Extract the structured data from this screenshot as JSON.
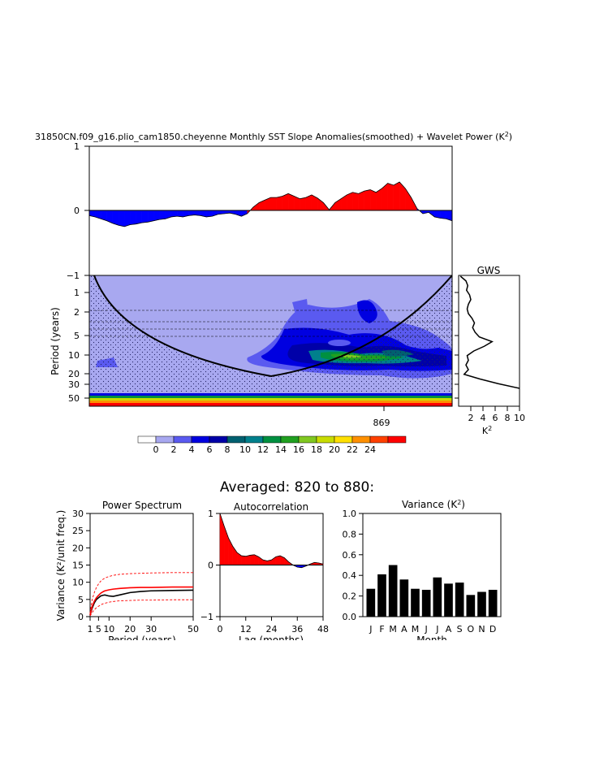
{
  "title": {
    "main": "31850CN.f09_g16.plio_cam1850.cheyenne Monthly SST Slope Anomalies(smoothed) + Wavelet Power (K",
    "sup": "2",
    "tail": ")"
  },
  "timeseries": {
    "yticks": [
      "1",
      "0",
      "−1"
    ],
    "values": [
      -0.08,
      -0.1,
      -0.13,
      -0.16,
      -0.2,
      -0.23,
      -0.25,
      -0.22,
      -0.21,
      -0.19,
      -0.18,
      -0.16,
      -0.14,
      -0.13,
      -0.1,
      -0.09,
      -0.1,
      -0.08,
      -0.07,
      -0.08,
      -0.1,
      -0.09,
      -0.06,
      -0.05,
      -0.04,
      -0.06,
      -0.09,
      -0.05,
      0.05,
      0.12,
      0.16,
      0.2,
      0.2,
      0.22,
      0.26,
      0.22,
      0.18,
      0.2,
      0.24,
      0.19,
      0.12,
      0.01,
      0.12,
      0.18,
      0.24,
      0.28,
      0.26,
      0.3,
      0.32,
      0.28,
      0.34,
      0.42,
      0.39,
      0.44,
      0.34,
      0.2,
      0.03,
      -0.05,
      -0.03,
      -0.1,
      -0.12,
      -0.13,
      -0.16
    ],
    "pos_color": "#ff0000",
    "neg_color": "#0000ff"
  },
  "wavelet": {
    "ylabel": "Period (years)",
    "yticks": [
      "1",
      "2",
      "5",
      "10",
      "20",
      "30",
      "50"
    ],
    "xtick": "869",
    "bg_color": "#a8a8f0"
  },
  "gws": {
    "title": "GWS",
    "xticks": [
      "2",
      "4",
      "6",
      "8",
      "10"
    ],
    "xlabel": "K",
    "xlabel_sup": "2",
    "values": [
      0.3,
      1.2,
      1.5,
      1.3,
      1.8,
      2.0,
      1.6,
      1.4,
      1.6,
      2.2,
      2.6,
      2.3,
      2.7,
      3.4,
      5.5,
      4.2,
      2.5,
      1.4,
      1.6,
      1.2,
      1.6,
      0.9,
      3.5,
      6.5,
      10
    ]
  },
  "colorbar": {
    "labels": [
      "0",
      "2",
      "4",
      "6",
      "8",
      "10",
      "12",
      "14",
      "16",
      "18",
      "20",
      "22",
      "24"
    ],
    "colors": [
      "#ffffff",
      "#a8a8f0",
      "#5a5af0",
      "#0000e0",
      "#0000a8",
      "#006070",
      "#00808c",
      "#009040",
      "#20a020",
      "#80c820",
      "#c8dc00",
      "#ffe000",
      "#ff9000",
      "#ff4000",
      "#ff0000"
    ]
  },
  "averaged_title": "Averaged: 820 to 880:",
  "chart_data": [
    {
      "type": "line",
      "title": "Power Spectrum",
      "xlabel": "Period (years)",
      "ylabel": "Variance (K²/unit freq.)",
      "xticks": [
        "1",
        "5",
        "10",
        "20",
        "30",
        "50"
      ],
      "yticks": [
        "0",
        "5",
        "10",
        "15",
        "20",
        "25",
        "30"
      ],
      "xlim": [
        1,
        50
      ],
      "ylim": [
        0,
        30
      ],
      "x": [
        1,
        2,
        3,
        4,
        5,
        6,
        7,
        8,
        10,
        12,
        15,
        20,
        25,
        30,
        40,
        50
      ],
      "series": [
        {
          "name": "spectrum",
          "color": "#000000",
          "values": [
            0.5,
            2.5,
            4.0,
            5.0,
            5.5,
            6.0,
            6.2,
            6.3,
            6.0,
            5.9,
            6.3,
            7.0,
            7.3,
            7.5,
            7.6,
            7.7
          ]
        },
        {
          "name": "red noise",
          "color": "#ff0000",
          "values": [
            0.5,
            3.0,
            4.5,
            5.5,
            6.2,
            6.8,
            7.2,
            7.5,
            7.8,
            8.0,
            8.2,
            8.4,
            8.5,
            8.5,
            8.6,
            8.6
          ]
        },
        {
          "name": "upper bound",
          "color": "#ff0000",
          "dashed": true,
          "values": [
            1.0,
            5.0,
            7.0,
            8.5,
            9.5,
            10.3,
            10.8,
            11.2,
            11.7,
            12.0,
            12.3,
            12.5,
            12.6,
            12.7,
            12.8,
            12.8
          ]
        },
        {
          "name": "lower bound",
          "color": "#ff0000",
          "dashed": true,
          "values": [
            0.2,
            1.2,
            2.0,
            2.6,
            3.0,
            3.4,
            3.7,
            3.9,
            4.2,
            4.4,
            4.6,
            4.7,
            4.8,
            4.8,
            4.9,
            4.9
          ]
        }
      ]
    },
    {
      "type": "area",
      "title": "Autocorrelation",
      "xlabel": "Lag (months)",
      "xticks": [
        "0",
        "12",
        "24",
        "36",
        "48"
      ],
      "yticks": [
        "1",
        "0",
        "−1"
      ],
      "xlim": [
        0,
        48
      ],
      "ylim": [
        -1,
        1
      ],
      "x": [
        0,
        2,
        4,
        6,
        8,
        10,
        12,
        14,
        16,
        18,
        20,
        22,
        24,
        26,
        28,
        30,
        32,
        34,
        36,
        38,
        40,
        42,
        44,
        46,
        48
      ],
      "values": [
        1.0,
        0.75,
        0.52,
        0.36,
        0.24,
        0.18,
        0.17,
        0.19,
        0.2,
        0.16,
        0.1,
        0.08,
        0.1,
        0.16,
        0.18,
        0.14,
        0.06,
        0.0,
        -0.04,
        -0.05,
        -0.02,
        0.02,
        0.05,
        0.04,
        0.02
      ]
    },
    {
      "type": "bar",
      "title": "Variance (K",
      "title_sup": "2",
      "title_tail": ")",
      "xlabel": "Month",
      "categories": [
        "J",
        "F",
        "M",
        "A",
        "M",
        "J",
        "J",
        "A",
        "S",
        "O",
        "N",
        "D"
      ],
      "values": [
        0.27,
        0.41,
        0.5,
        0.36,
        0.27,
        0.26,
        0.38,
        0.32,
        0.33,
        0.21,
        0.24,
        0.26
      ],
      "yticks": [
        "0.0",
        "0.2",
        "0.4",
        "0.6",
        "0.8",
        "1.0"
      ],
      "ylim": [
        0,
        1.0
      ]
    }
  ]
}
